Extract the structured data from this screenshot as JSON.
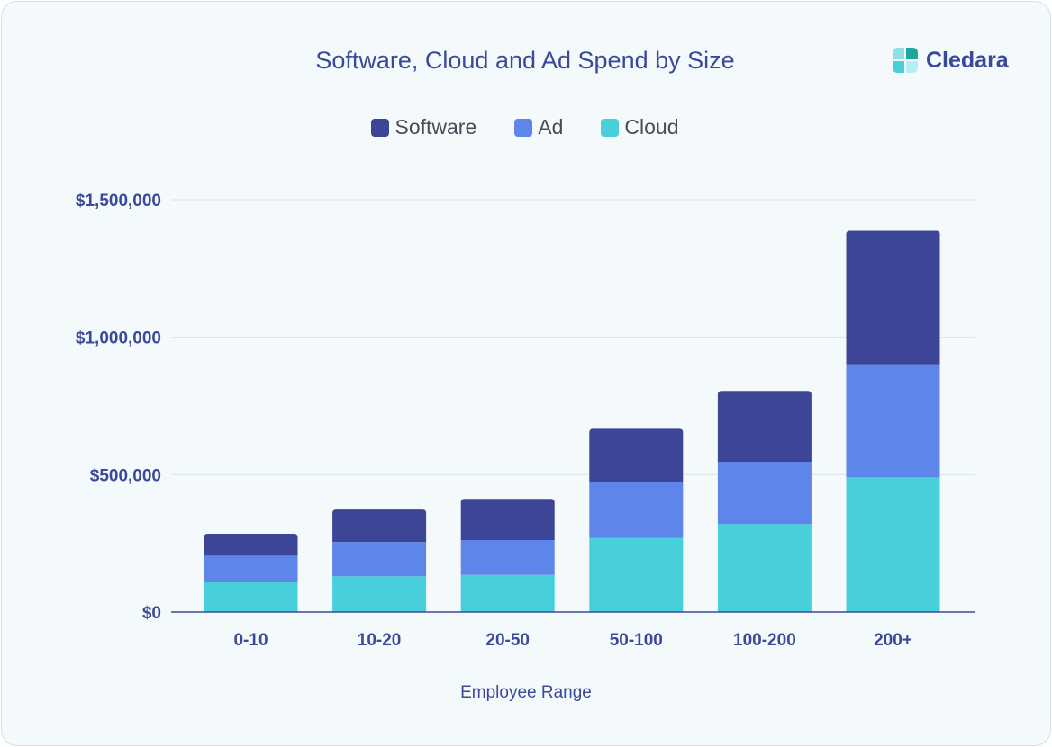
{
  "chart_data": {
    "type": "bar",
    "stacked": true,
    "title": "Software, Cloud and Ad Spend by Size",
    "xlabel": "Employee Range",
    "ylabel": "",
    "categories": [
      "0-10",
      "10-20",
      "20-50",
      "50-100",
      "100-200",
      "200+"
    ],
    "series": [
      {
        "name": "Cloud",
        "color": "#47d0d9",
        "values": [
          108000,
          130000,
          135000,
          270000,
          320000,
          490000
        ]
      },
      {
        "name": "Ad",
        "color": "#5e86ea",
        "values": [
          97000,
          125000,
          127000,
          205000,
          227000,
          412000
        ]
      },
      {
        "name": "Software",
        "color": "#3d4696",
        "values": [
          80000,
          118000,
          150000,
          192000,
          258000,
          485000
        ]
      }
    ],
    "ylim": [
      0,
      1500000
    ],
    "yticks": [
      0,
      500000,
      1000000,
      1500000
    ],
    "ytick_labels": [
      "$0",
      "$500,000",
      "$1,000,000",
      "$1,500,000"
    ],
    "legend_order": [
      "Software",
      "Ad",
      "Cloud"
    ],
    "legend_placement": "top-center",
    "grid": true
  },
  "brand": {
    "name": "Cledara",
    "logo_icon": "cledara-logo-icon",
    "color": "#3a4a9a"
  }
}
